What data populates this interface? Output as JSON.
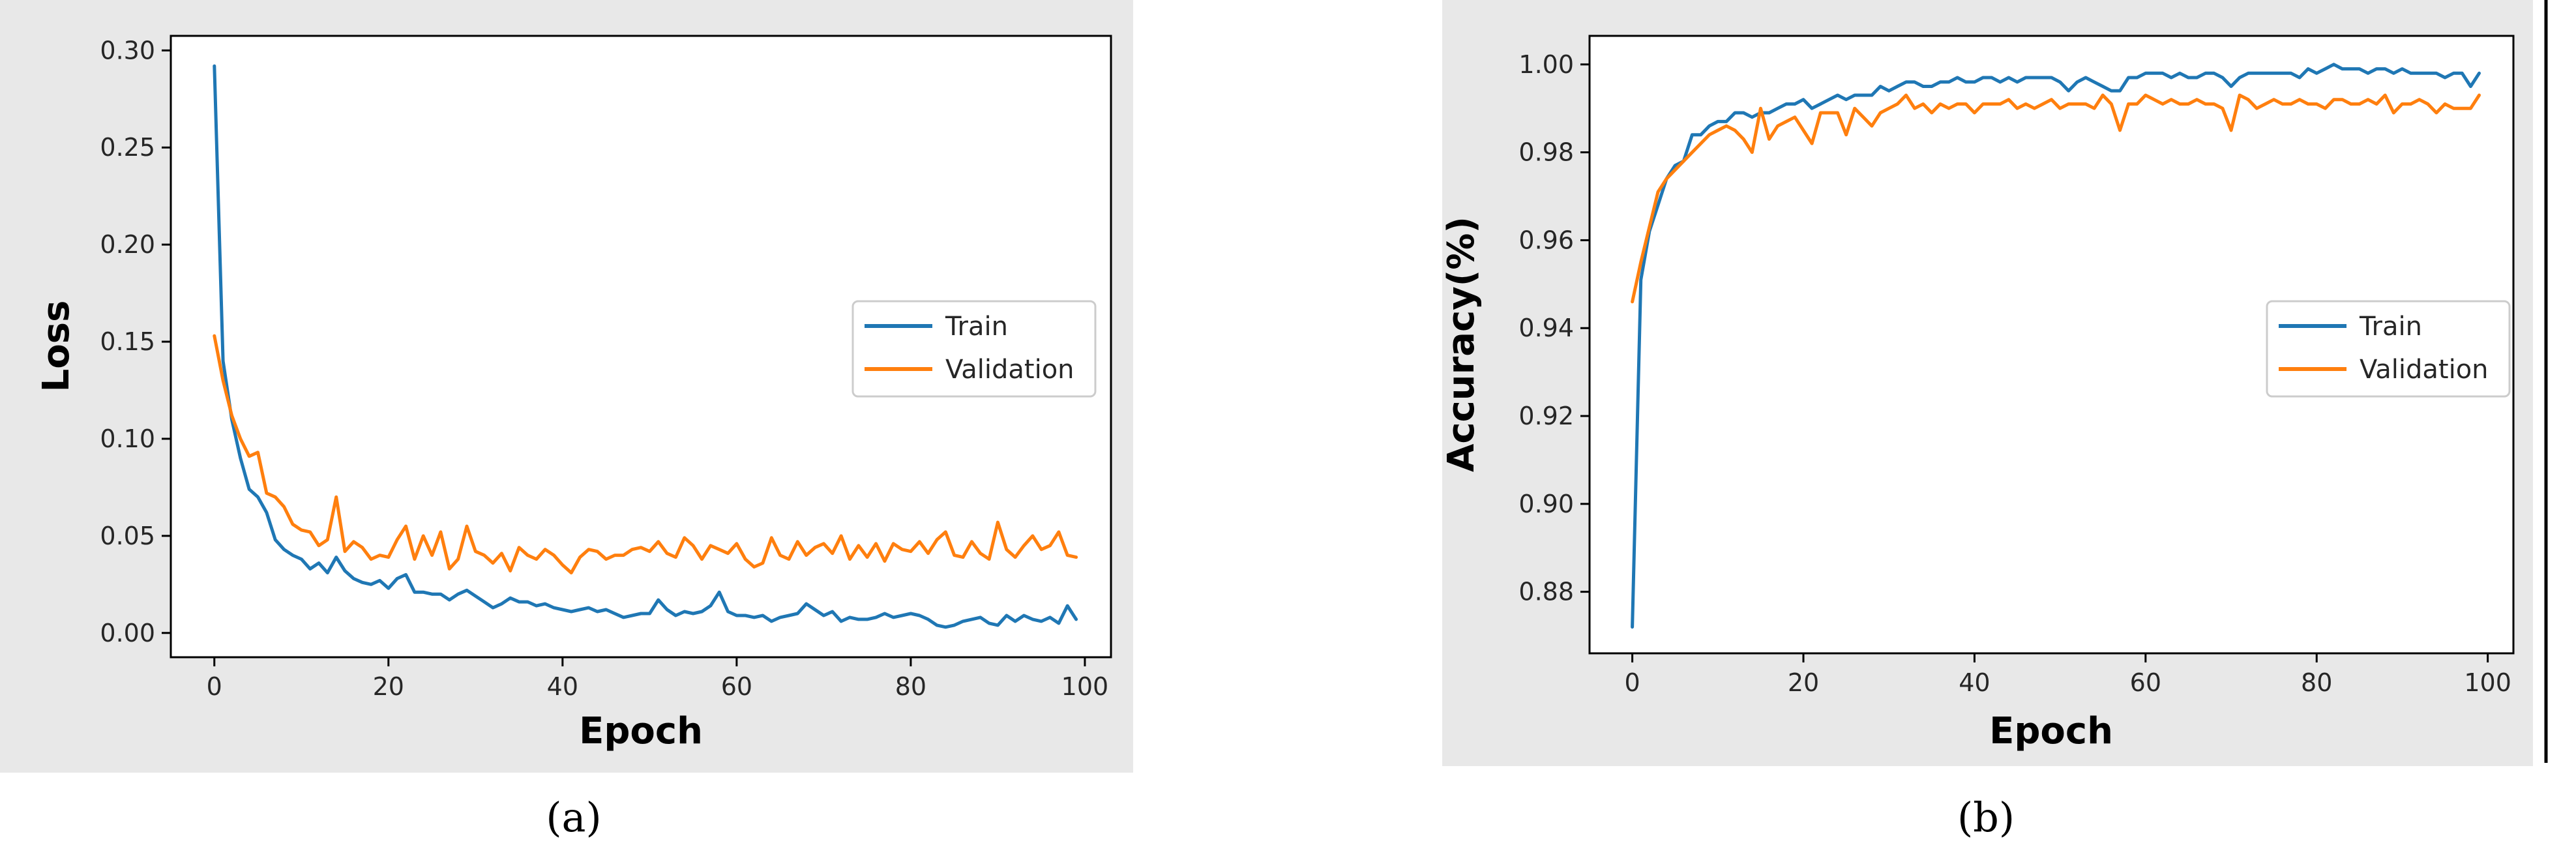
{
  "colors": {
    "train": "#1f77b4",
    "validation": "#ff7f0e",
    "panel_bg": "#e8e8e8"
  },
  "captions": {
    "a": "(a)",
    "b": "(b)"
  },
  "chart_data": [
    {
      "type": "line",
      "caption": "(a)",
      "xlabel": "Epoch",
      "ylabel": "Loss",
      "xlim": [
        -5,
        103
      ],
      "ylim": [
        -0.0125,
        0.3075
      ],
      "xticks": [
        0,
        20,
        40,
        60,
        80,
        100
      ],
      "xtick_labels": [
        "0",
        "20",
        "40",
        "60",
        "80",
        "100"
      ],
      "yticks": [
        0.0,
        0.05,
        0.1,
        0.15,
        0.2,
        0.25,
        0.3
      ],
      "ytick_labels": [
        "0.00",
        "0.05",
        "0.10",
        "0.15",
        "0.20",
        "0.25",
        "0.30"
      ],
      "legend": {
        "position": "center-right",
        "entries": [
          "Train",
          "Validation"
        ]
      },
      "series": [
        {
          "name": "Train",
          "values": [
            0.292,
            0.14,
            0.11,
            0.09,
            0.074,
            0.07,
            0.062,
            0.048,
            0.043,
            0.04,
            0.038,
            0.033,
            0.036,
            0.031,
            0.039,
            0.032,
            0.028,
            0.026,
            0.025,
            0.027,
            0.023,
            0.028,
            0.03,
            0.021,
            0.021,
            0.02,
            0.02,
            0.017,
            0.02,
            0.022,
            0.019,
            0.016,
            0.013,
            0.015,
            0.018,
            0.016,
            0.016,
            0.014,
            0.015,
            0.013,
            0.012,
            0.011,
            0.012,
            0.013,
            0.011,
            0.012,
            0.01,
            0.008,
            0.009,
            0.01,
            0.01,
            0.017,
            0.012,
            0.009,
            0.011,
            0.01,
            0.011,
            0.014,
            0.021,
            0.011,
            0.009,
            0.009,
            0.008,
            0.009,
            0.006,
            0.008,
            0.009,
            0.01,
            0.015,
            0.012,
            0.009,
            0.011,
            0.006,
            0.008,
            0.007,
            0.007,
            0.008,
            0.01,
            0.008,
            0.009,
            0.01,
            0.009,
            0.007,
            0.004,
            0.003,
            0.004,
            0.006,
            0.007,
            0.008,
            0.005,
            0.004,
            0.009,
            0.006,
            0.009,
            0.007,
            0.006,
            0.008,
            0.005,
            0.014,
            0.007
          ]
        },
        {
          "name": "Validation",
          "values": [
            0.153,
            0.13,
            0.112,
            0.1,
            0.091,
            0.093,
            0.072,
            0.07,
            0.065,
            0.056,
            0.053,
            0.052,
            0.045,
            0.048,
            0.07,
            0.042,
            0.047,
            0.044,
            0.038,
            0.04,
            0.039,
            0.048,
            0.055,
            0.038,
            0.05,
            0.04,
            0.052,
            0.033,
            0.038,
            0.055,
            0.042,
            0.04,
            0.036,
            0.041,
            0.032,
            0.044,
            0.04,
            0.038,
            0.043,
            0.04,
            0.035,
            0.031,
            0.039,
            0.043,
            0.042,
            0.038,
            0.04,
            0.04,
            0.043,
            0.044,
            0.042,
            0.047,
            0.041,
            0.039,
            0.049,
            0.045,
            0.038,
            0.045,
            0.043,
            0.041,
            0.046,
            0.038,
            0.034,
            0.036,
            0.049,
            0.04,
            0.038,
            0.047,
            0.04,
            0.044,
            0.046,
            0.041,
            0.05,
            0.038,
            0.045,
            0.039,
            0.046,
            0.037,
            0.046,
            0.043,
            0.042,
            0.047,
            0.041,
            0.048,
            0.052,
            0.04,
            0.039,
            0.047,
            0.041,
            0.038,
            0.057,
            0.043,
            0.039,
            0.045,
            0.05,
            0.043,
            0.045,
            0.052,
            0.04,
            0.039
          ]
        }
      ]
    },
    {
      "type": "line",
      "caption": "(b)",
      "xlabel": "Epoch",
      "ylabel": "Accuracy(%)",
      "xlim": [
        -5,
        103
      ],
      "ylim": [
        0.866,
        1.0065
      ],
      "xticks": [
        0,
        20,
        40,
        60,
        80,
        100
      ],
      "xtick_labels": [
        "0",
        "20",
        "40",
        "60",
        "80",
        "100"
      ],
      "yticks": [
        0.88,
        0.9,
        0.92,
        0.94,
        0.96,
        0.98,
        1.0
      ],
      "ytick_labels": [
        "0.88",
        "0.90",
        "0.92",
        "0.94",
        "0.96",
        "0.98",
        "1.00"
      ],
      "legend": {
        "position": "center-right",
        "entries": [
          "Train",
          "Validation"
        ]
      },
      "series": [
        {
          "name": "Train",
          "values": [
            0.872,
            0.951,
            0.962,
            0.968,
            0.974,
            0.977,
            0.978,
            0.984,
            0.984,
            0.986,
            0.987,
            0.987,
            0.989,
            0.989,
            0.988,
            0.989,
            0.989,
            0.99,
            0.991,
            0.991,
            0.992,
            0.99,
            0.991,
            0.992,
            0.993,
            0.992,
            0.993,
            0.993,
            0.993,
            0.995,
            0.994,
            0.995,
            0.996,
            0.996,
            0.995,
            0.995,
            0.996,
            0.996,
            0.997,
            0.996,
            0.996,
            0.997,
            0.997,
            0.996,
            0.997,
            0.996,
            0.997,
            0.997,
            0.997,
            0.997,
            0.996,
            0.994,
            0.996,
            0.997,
            0.996,
            0.995,
            0.994,
            0.994,
            0.997,
            0.997,
            0.998,
            0.998,
            0.998,
            0.997,
            0.998,
            0.997,
            0.997,
            0.998,
            0.998,
            0.997,
            0.995,
            0.997,
            0.998,
            0.998,
            0.998,
            0.998,
            0.998,
            0.998,
            0.997,
            0.999,
            0.998,
            0.999,
            1.0,
            0.999,
            0.999,
            0.999,
            0.998,
            0.999,
            0.999,
            0.998,
            0.999,
            0.998,
            0.998,
            0.998,
            0.998,
            0.997,
            0.998,
            0.998,
            0.995,
            0.998
          ]
        },
        {
          "name": "Validation",
          "values": [
            0.946,
            0.955,
            0.963,
            0.971,
            0.974,
            0.976,
            0.978,
            0.98,
            0.982,
            0.984,
            0.985,
            0.986,
            0.985,
            0.983,
            0.98,
            0.99,
            0.983,
            0.986,
            0.987,
            0.988,
            0.985,
            0.982,
            0.989,
            0.989,
            0.989,
            0.984,
            0.99,
            0.988,
            0.986,
            0.989,
            0.99,
            0.991,
            0.993,
            0.99,
            0.991,
            0.989,
            0.991,
            0.99,
            0.991,
            0.991,
            0.989,
            0.991,
            0.991,
            0.991,
            0.992,
            0.99,
            0.991,
            0.99,
            0.991,
            0.992,
            0.99,
            0.991,
            0.991,
            0.991,
            0.99,
            0.993,
            0.991,
            0.985,
            0.991,
            0.991,
            0.993,
            0.992,
            0.991,
            0.992,
            0.991,
            0.991,
            0.992,
            0.991,
            0.991,
            0.99,
            0.985,
            0.993,
            0.992,
            0.99,
            0.991,
            0.992,
            0.991,
            0.991,
            0.992,
            0.991,
            0.991,
            0.99,
            0.992,
            0.992,
            0.991,
            0.991,
            0.992,
            0.991,
            0.993,
            0.989,
            0.991,
            0.991,
            0.992,
            0.991,
            0.989,
            0.991,
            0.99,
            0.99,
            0.99,
            0.993
          ]
        }
      ]
    }
  ]
}
